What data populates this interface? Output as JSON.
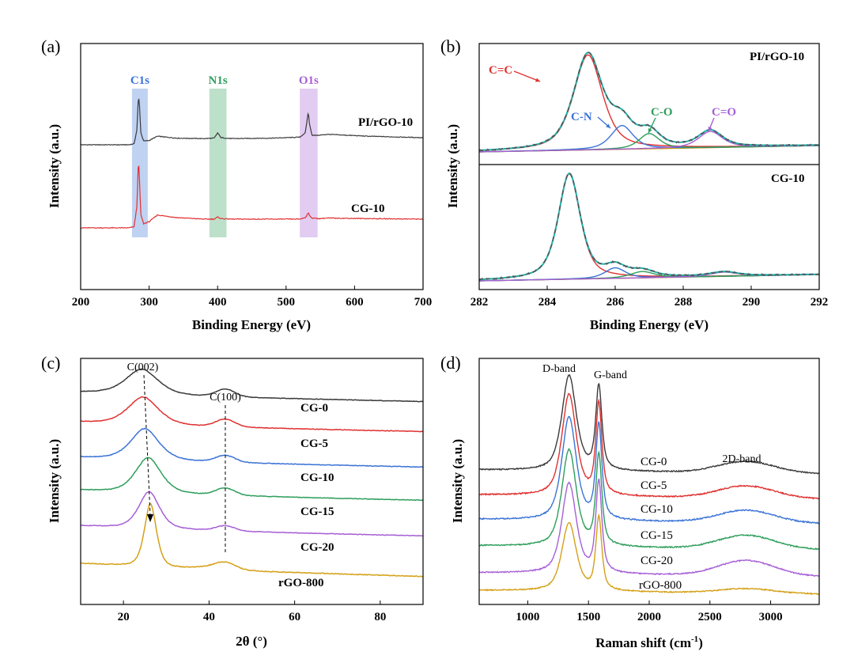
{
  "chart_data": [
    {
      "type": "line",
      "panel": "(a)",
      "xlabel": "Binding Energy (eV)",
      "ylabel": "Intensity (a.u.)",
      "xlim": [
        200,
        700
      ],
      "xticks": [
        200,
        300,
        400,
        500,
        600,
        700
      ],
      "y_ticks_shown": false,
      "bands": [
        {
          "label": "C1s",
          "x": [
            275,
            298
          ],
          "color": "#3b73d6"
        },
        {
          "label": "N1s",
          "x": [
            388,
            413
          ],
          "color": "#2e9e5b"
        },
        {
          "label": "O1s",
          "x": [
            520,
            546
          ],
          "color": "#a65fd6"
        }
      ],
      "series": [
        {
          "name": "PI/rGO-10",
          "color": "#3a3a3a",
          "offset": 1.4,
          "x": [
            200,
            270,
            278,
            282,
            284.5,
            286,
            288,
            292,
            300,
            312,
            340,
            380,
            395,
            400,
            405,
            420,
            480,
            520,
            528,
            531,
            532.5,
            534,
            538,
            548,
            560,
            620,
            700
          ],
          "y": [
            0,
            0,
            0.02,
            0.3,
            1.05,
            0.8,
            0.25,
            0.08,
            0.09,
            0.18,
            0.14,
            0.13,
            0.14,
            0.25,
            0.15,
            0.13,
            0.14,
            0.16,
            0.25,
            0.55,
            0.7,
            0.45,
            0.2,
            0.2,
            0.22,
            0.18,
            0.15
          ]
        },
        {
          "name": "CG-10",
          "color": "#e03131",
          "offset": 0,
          "x": [
            200,
            270,
            278,
            282,
            284.5,
            286,
            288,
            292,
            300,
            312,
            340,
            380,
            395,
            400,
            405,
            420,
            480,
            520,
            528,
            531,
            532.5,
            534,
            538,
            548,
            560,
            620,
            700
          ],
          "y": [
            0,
            0,
            0.02,
            0.4,
            1.35,
            0.9,
            0.25,
            0.08,
            0.12,
            0.25,
            0.2,
            0.17,
            0.17,
            0.21,
            0.18,
            0.17,
            0.17,
            0.17,
            0.2,
            0.26,
            0.3,
            0.24,
            0.19,
            0.18,
            0.19,
            0.18,
            0.17
          ]
        }
      ]
    },
    {
      "type": "line",
      "panel": "(b)",
      "xlabel": "Binding Energy (eV)",
      "ylabel": "Intensity (a.u.)",
      "xlim": [
        282,
        292
      ],
      "xticks": [
        282,
        284,
        286,
        288,
        290,
        292
      ],
      "y_ticks_shown": false,
      "subplots": [
        {
          "name": "PI/rGO-10",
          "components": [
            {
              "label": "C=C",
              "color": "#e03131",
              "center": 285.2,
              "height": 1.0,
              "width": 0.85
            },
            {
              "label": "C-N",
              "color": "#3b73d6",
              "center": 286.2,
              "height": 0.25,
              "width": 0.65
            },
            {
              "label": "C-O",
              "color": "#2e9e5b",
              "center": 287.0,
              "height": 0.16,
              "width": 0.6
            },
            {
              "label": "C=O",
              "color": "#a65fd6",
              "center": 288.8,
              "height": 0.17,
              "width": 0.7
            }
          ]
        },
        {
          "name": "CG-10",
          "components": [
            {
              "label": "C=C",
              "color": "#e03131",
              "center": 284.65,
              "height": 1.0,
              "width": 0.65
            },
            {
              "label": "C-N",
              "color": "#3b73d6",
              "center": 286.0,
              "height": 0.1,
              "width": 0.6
            },
            {
              "label": "C-O",
              "color": "#2e9e5b",
              "center": 286.8,
              "height": 0.06,
              "width": 0.7
            },
            {
              "label": "C=O",
              "color": "#a65fd6",
              "center": 289.2,
              "height": 0.04,
              "width": 0.8
            }
          ]
        }
      ]
    },
    {
      "type": "line",
      "panel": "(c)",
      "xlabel": "2θ (°)",
      "ylabel": "Intensity (a.u.)",
      "xlim": [
        10,
        90
      ],
      "xticks": [
        20,
        40,
        60,
        80
      ],
      "y_ticks_shown": false,
      "annotations": [
        {
          "text": "C(002)",
          "x": 24.5
        },
        {
          "text": "C(100)",
          "x": 43.8
        }
      ],
      "series": [
        {
          "name": "CG-0",
          "color": "#3a3a3a",
          "peak002": 24.3,
          "w002": 4.0,
          "h002": 0.55,
          "h100": 0.16
        },
        {
          "name": "CG-5",
          "color": "#e03131",
          "peak002": 24.6,
          "w002": 3.8,
          "h002": 0.6,
          "h100": 0.16
        },
        {
          "name": "CG-10",
          "color": "#3b73d6",
          "peak002": 25.0,
          "w002": 3.5,
          "h002": 0.66,
          "h100": 0.14
        },
        {
          "name": "CG-15",
          "color": "#2e9e5b",
          "peak002": 25.8,
          "w002": 3.2,
          "h002": 0.72,
          "h100": 0.14
        },
        {
          "name": "CG-20",
          "color": "#a65fd6",
          "peak002": 26.0,
          "w002": 2.6,
          "h002": 0.75,
          "h100": 0.1
        },
        {
          "name": "rGO-800",
          "color": "#d4a017",
          "peak002": 26.3,
          "w002": 1.5,
          "h002": 1.0,
          "h100": 0.08
        }
      ]
    },
    {
      "type": "line",
      "panel": "(d)",
      "xlabel": "Raman shift (cm⁻¹)",
      "ylabel": "Intensity (a.u.)",
      "xlim": [
        600,
        3400
      ],
      "xticks": [
        1000,
        1500,
        2000,
        2500,
        3000
      ],
      "y_ticks_shown": false,
      "band_labels": [
        {
          "text": "D-band",
          "x": 1340
        },
        {
          "text": "G-band",
          "x": 1585
        },
        {
          "text": "2D-band",
          "x": 2800
        }
      ],
      "series": [
        {
          "name": "CG-0",
          "color": "#3a3a3a",
          "d": 1.0,
          "g": 0.88,
          "d2": 0.12
        },
        {
          "name": "CG-5",
          "color": "#e03131",
          "d": 1.0,
          "g": 0.9,
          "d2": 0.12
        },
        {
          "name": "CG-10",
          "color": "#3b73d6",
          "d": 1.0,
          "g": 0.92,
          "d2": 0.12
        },
        {
          "name": "CG-15",
          "color": "#2e9e5b",
          "d": 1.0,
          "g": 0.94,
          "d2": 0.14
        },
        {
          "name": "CG-20",
          "color": "#a65fd6",
          "d": 0.95,
          "g": 0.96,
          "d2": 0.16
        },
        {
          "name": "rGO-800",
          "color": "#d4a017",
          "d": 0.75,
          "g": 0.8,
          "d2": 0.05
        }
      ]
    }
  ]
}
